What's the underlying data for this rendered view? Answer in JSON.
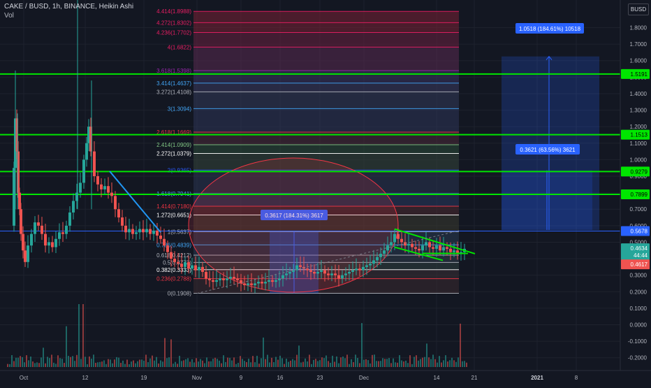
{
  "chart_data": {
    "type": "candlestick",
    "title": "CAKE / BUSD, 1h, BINANCE, Heikin Ashi",
    "indicator": "Vol",
    "currency": "BUSD",
    "x_labels": [
      "Oct",
      "12",
      "19",
      "Nov",
      "9",
      "16",
      "23",
      "Dec",
      "14",
      "21",
      "2021",
      "8"
    ],
    "y_labels": [
      "1.8000",
      "1.7000",
      "1.6000",
      "1.5000",
      "1.4000",
      "1.3000",
      "1.2000",
      "1.1000",
      "1.0000",
      "0.9000",
      "0.8000",
      "0.7000",
      "0.6000",
      "0.5000",
      "0.4000",
      "0.3000",
      "0.2000",
      "0.1000",
      "0.0000",
      "-0.1000",
      "-0.2000"
    ],
    "price_tags": [
      {
        "label": "1.5191",
        "price": 1.5191,
        "color": "#00e600",
        "text": "#000000"
      },
      {
        "label": "1.1513",
        "price": 1.1513,
        "color": "#00e600",
        "text": "#000000"
      },
      {
        "label": "0.9279",
        "price": 0.9279,
        "color": "#00e600",
        "text": "#000000"
      },
      {
        "label": "0.7899",
        "price": 0.7899,
        "color": "#00e600",
        "text": "#000000"
      },
      {
        "label": "0.5678",
        "price": 0.5678,
        "color": "#2962ff",
        "text": "#ffffff"
      },
      {
        "label": "0.4634",
        "price": 0.4634,
        "color": "#26a69a",
        "text": "#ffffff"
      },
      {
        "label": "44:44",
        "price": 0.422,
        "color": "#26a69a",
        "text": "#ffffff"
      },
      {
        "label": "0.4617",
        "price": 0.366,
        "color": "#ef5350",
        "text": "#ffffff"
      }
    ],
    "horizontal_lines": [
      {
        "price": 1.5191,
        "color": "#00e600"
      },
      {
        "price": 1.1513,
        "color": "#00e600"
      },
      {
        "price": 0.9279,
        "color": "#00e600"
      },
      {
        "price": 0.7899,
        "color": "#00e600"
      },
      {
        "price": 0.5678,
        "color": "#2962ff"
      }
    ],
    "fib_levels": [
      {
        "label": "4.414(1.8988)",
        "price": 1.8988,
        "color": "#e91e63"
      },
      {
        "label": "4.272(1.8302)",
        "price": 1.8302,
        "color": "#e91e63"
      },
      {
        "label": "4.236(1.7702)",
        "price": 1.7702,
        "color": "#e91e63"
      },
      {
        "label": "4(1.6822)",
        "price": 1.6822,
        "color": "#e91e63"
      },
      {
        "label": "3.618(1.5398)",
        "price": 1.5398,
        "color": "#9c27b0"
      },
      {
        "label": "3.414(1.4637)",
        "price": 1.4637,
        "color": "#42a5f5"
      },
      {
        "label": "3.272(1.4108)",
        "price": 1.4108,
        "color": "#b2b5be"
      },
      {
        "label": "3(1.3094)",
        "price": 1.3094,
        "color": "#42a5f5"
      },
      {
        "label": "2.618(1.1669)",
        "price": 1.1669,
        "color": "#f23645"
      },
      {
        "label": "2.414(1.0909)",
        "price": 1.0909,
        "color": "#81c784"
      },
      {
        "label": "2.272(1.0379)",
        "price": 1.0379,
        "color": "#ffffff"
      },
      {
        "label": "2(0.9365)",
        "price": 0.9365,
        "color": "#2962ff"
      },
      {
        "label": "1.618(0.7941)",
        "price": 0.7941,
        "color": "#42a5f5"
      },
      {
        "label": "1.414(0.7180)",
        "price": 0.718,
        "color": "#f23645"
      },
      {
        "label": "1.272(0.6651)",
        "price": 0.6651,
        "color": "#ffffff"
      },
      {
        "label": "1(0.5637)",
        "price": 0.5637,
        "color": "#b2b5be"
      },
      {
        "label": "0.786(0.4839)",
        "price": 0.4839,
        "color": "#42a5f5"
      },
      {
        "label": "0.618(0.4212)",
        "price": 0.4212,
        "color": "#b2b5be"
      },
      {
        "label": "0.5(0.3773)",
        "price": 0.3773,
        "color": "#b2b5be"
      },
      {
        "label": "0.382(0.3333)",
        "price": 0.3333,
        "color": "#ffffff"
      },
      {
        "label": "0.236(0.2788)",
        "price": 0.2788,
        "color": "#f23645"
      },
      {
        "label": "0(0.1908)",
        "price": 0.1908,
        "color": "#b2b5be"
      }
    ],
    "measure_labels": [
      {
        "text": "1.0518 (184.61%) 10518"
      },
      {
        "text": "0.3621 (63.56%) 3621"
      },
      {
        "text": "0.3617 (184.31%) 3617"
      }
    ],
    "colors": {
      "background": "#131722",
      "up": "#26a69a",
      "down": "#ef5350",
      "trendline": "#2196f3",
      "channel": "#00e600",
      "ellipse": "#f23645",
      "measure": "#2962ff"
    }
  }
}
